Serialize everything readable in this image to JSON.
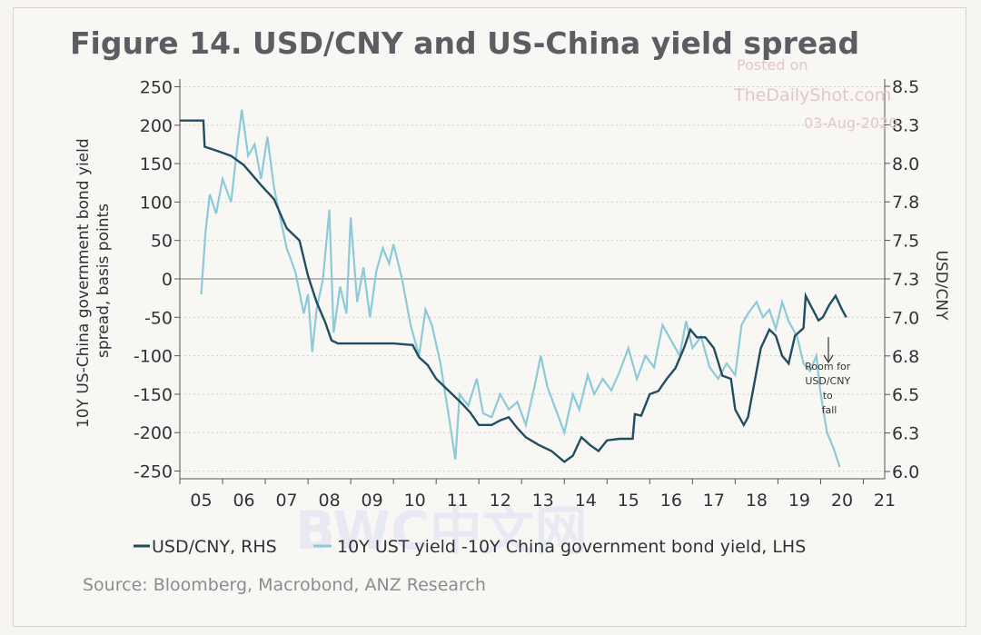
{
  "title": "Figure 14. USD/CNY and US-China yield spread",
  "source": "Source: Bloomberg, Macrobond, ANZ Research",
  "watermark": {
    "line1": "Posted on",
    "line2": "TheDailyShot.com",
    "line3": "03-Aug-2020",
    "background": "BWC中文网"
  },
  "annotation": [
    "Room for",
    "USD/CNY",
    "to",
    "fall"
  ],
  "colors": {
    "usdcny": "#1f4e61",
    "spread": "#8ccad9",
    "zero_line": "#7d7d7d",
    "grid": "#cfcfcf"
  },
  "chart_data": {
    "type": "line",
    "title": "Figure 14. USD/CNY and US-China yield spread",
    "xlabel": "",
    "ylabel_left": "10Y US-China government bond yield spread, basis points",
    "ylabel_right": "USD/CNY",
    "x_ticks": [
      "05",
      "06",
      "07",
      "08",
      "09",
      "10",
      "11",
      "12",
      "13",
      "14",
      "15",
      "16",
      "17",
      "18",
      "19",
      "20",
      "21"
    ],
    "x_range": [
      2005,
      2021.5
    ],
    "y_left_ticks": [
      "250",
      "200",
      "150",
      "100",
      "50",
      "0",
      "-50",
      "-100",
      "-150",
      "-200",
      "-250"
    ],
    "y_left_range": [
      -260,
      260
    ],
    "y_right_ticks": [
      "8.5",
      "8.3",
      "8.0",
      "7.8",
      "7.5",
      "7.3",
      "7.0",
      "6.8",
      "6.5",
      "6.3",
      "6.0"
    ],
    "y_right_range": [
      5.95,
      8.55
    ],
    "grid": "horizontal dotted",
    "legend_position": "bottom",
    "series": [
      {
        "name": "USD/CNY, RHS",
        "axis": "right",
        "points": [
          [
            2005.0,
            8.28
          ],
          [
            2005.55,
            8.28
          ],
          [
            2005.58,
            8.11
          ],
          [
            2005.9,
            8.08
          ],
          [
            2006.2,
            8.05
          ],
          [
            2006.5,
            7.99
          ],
          [
            2006.9,
            7.86
          ],
          [
            2007.2,
            7.77
          ],
          [
            2007.5,
            7.58
          ],
          [
            2007.8,
            7.5
          ],
          [
            2008.0,
            7.27
          ],
          [
            2008.2,
            7.1
          ],
          [
            2008.4,
            6.97
          ],
          [
            2008.55,
            6.85
          ],
          [
            2008.7,
            6.83
          ],
          [
            2009.0,
            6.83
          ],
          [
            2009.5,
            6.83
          ],
          [
            2010.0,
            6.83
          ],
          [
            2010.45,
            6.82
          ],
          [
            2010.6,
            6.74
          ],
          [
            2010.8,
            6.69
          ],
          [
            2011.0,
            6.6
          ],
          [
            2011.3,
            6.52
          ],
          [
            2011.6,
            6.44
          ],
          [
            2011.8,
            6.38
          ],
          [
            2012.0,
            6.3
          ],
          [
            2012.3,
            6.3
          ],
          [
            2012.5,
            6.33
          ],
          [
            2012.7,
            6.35
          ],
          [
            2012.9,
            6.28
          ],
          [
            2013.1,
            6.22
          ],
          [
            2013.4,
            6.17
          ],
          [
            2013.7,
            6.13
          ],
          [
            2014.0,
            6.06
          ],
          [
            2014.2,
            6.1
          ],
          [
            2014.4,
            6.22
          ],
          [
            2014.6,
            6.17
          ],
          [
            2014.8,
            6.13
          ],
          [
            2015.0,
            6.2
          ],
          [
            2015.3,
            6.21
          ],
          [
            2015.6,
            6.21
          ],
          [
            2015.65,
            6.37
          ],
          [
            2015.8,
            6.36
          ],
          [
            2016.0,
            6.5
          ],
          [
            2016.2,
            6.52
          ],
          [
            2016.4,
            6.6
          ],
          [
            2016.6,
            6.67
          ],
          [
            2016.8,
            6.8
          ],
          [
            2016.95,
            6.92
          ],
          [
            2017.1,
            6.87
          ],
          [
            2017.3,
            6.87
          ],
          [
            2017.5,
            6.8
          ],
          [
            2017.7,
            6.62
          ],
          [
            2017.9,
            6.6
          ],
          [
            2018.0,
            6.4
          ],
          [
            2018.2,
            6.3
          ],
          [
            2018.3,
            6.35
          ],
          [
            2018.5,
            6.65
          ],
          [
            2018.6,
            6.8
          ],
          [
            2018.8,
            6.92
          ],
          [
            2018.95,
            6.88
          ],
          [
            2019.1,
            6.75
          ],
          [
            2019.25,
            6.7
          ],
          [
            2019.4,
            6.88
          ],
          [
            2019.6,
            6.93
          ],
          [
            2019.65,
            7.14
          ],
          [
            2019.8,
            7.06
          ],
          [
            2019.95,
            6.98
          ],
          [
            2020.05,
            7.0
          ],
          [
            2020.2,
            7.08
          ],
          [
            2020.35,
            7.14
          ],
          [
            2020.5,
            7.05
          ],
          [
            2020.6,
            7.0
          ]
        ]
      },
      {
        "name": "10Y UST yield -10Y China government bond yield, LHS",
        "axis": "left",
        "points": [
          [
            2005.5,
            -20
          ],
          [
            2005.6,
            60
          ],
          [
            2005.7,
            110
          ],
          [
            2005.85,
            85
          ],
          [
            2006.0,
            130
          ],
          [
            2006.2,
            100
          ],
          [
            2006.35,
            175
          ],
          [
            2006.45,
            220
          ],
          [
            2006.6,
            160
          ],
          [
            2006.75,
            175
          ],
          [
            2006.9,
            130
          ],
          [
            2007.05,
            185
          ],
          [
            2007.2,
            120
          ],
          [
            2007.35,
            80
          ],
          [
            2007.5,
            40
          ],
          [
            2007.7,
            10
          ],
          [
            2007.9,
            -45
          ],
          [
            2008.0,
            -20
          ],
          [
            2008.1,
            -95
          ],
          [
            2008.2,
            -40
          ],
          [
            2008.35,
            0
          ],
          [
            2008.5,
            90
          ],
          [
            2008.6,
            -70
          ],
          [
            2008.75,
            -10
          ],
          [
            2008.9,
            -45
          ],
          [
            2009.0,
            80
          ],
          [
            2009.15,
            -30
          ],
          [
            2009.3,
            15
          ],
          [
            2009.45,
            -50
          ],
          [
            2009.6,
            10
          ],
          [
            2009.75,
            40
          ],
          [
            2009.9,
            20
          ],
          [
            2010.0,
            45
          ],
          [
            2010.2,
            0
          ],
          [
            2010.4,
            -60
          ],
          [
            2010.6,
            -100
          ],
          [
            2010.75,
            -40
          ],
          [
            2010.9,
            -60
          ],
          [
            2011.1,
            -110
          ],
          [
            2011.3,
            -180
          ],
          [
            2011.45,
            -235
          ],
          [
            2011.55,
            -150
          ],
          [
            2011.75,
            -165
          ],
          [
            2011.95,
            -130
          ],
          [
            2012.1,
            -175
          ],
          [
            2012.3,
            -180
          ],
          [
            2012.5,
            -150
          ],
          [
            2012.7,
            -170
          ],
          [
            2012.9,
            -160
          ],
          [
            2013.1,
            -190
          ],
          [
            2013.3,
            -140
          ],
          [
            2013.45,
            -100
          ],
          [
            2013.6,
            -140
          ],
          [
            2013.8,
            -170
          ],
          [
            2014.0,
            -200
          ],
          [
            2014.2,
            -150
          ],
          [
            2014.35,
            -170
          ],
          [
            2014.55,
            -125
          ],
          [
            2014.7,
            -150
          ],
          [
            2014.9,
            -130
          ],
          [
            2015.1,
            -145
          ],
          [
            2015.3,
            -120
          ],
          [
            2015.5,
            -90
          ],
          [
            2015.7,
            -130
          ],
          [
            2015.9,
            -100
          ],
          [
            2016.1,
            -115
          ],
          [
            2016.3,
            -60
          ],
          [
            2016.5,
            -80
          ],
          [
            2016.7,
            -100
          ],
          [
            2016.85,
            -55
          ],
          [
            2017.0,
            -90
          ],
          [
            2017.2,
            -75
          ],
          [
            2017.4,
            -115
          ],
          [
            2017.6,
            -130
          ],
          [
            2017.8,
            -110
          ],
          [
            2018.0,
            -125
          ],
          [
            2018.15,
            -60
          ],
          [
            2018.3,
            -45
          ],
          [
            2018.5,
            -30
          ],
          [
            2018.65,
            -50
          ],
          [
            2018.8,
            -40
          ],
          [
            2018.95,
            -65
          ],
          [
            2019.1,
            -30
          ],
          [
            2019.25,
            -55
          ],
          [
            2019.45,
            -75
          ],
          [
            2019.6,
            -110
          ],
          [
            2019.75,
            -120
          ],
          [
            2019.9,
            -100
          ],
          [
            2020.0,
            -150
          ],
          [
            2020.15,
            -200
          ],
          [
            2020.3,
            -220
          ],
          [
            2020.45,
            -245
          ]
        ]
      }
    ]
  }
}
